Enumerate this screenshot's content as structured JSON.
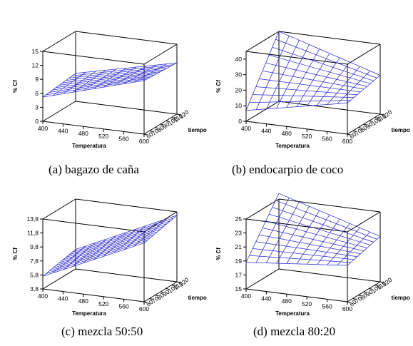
{
  "captions": [
    "(a) bagazo de caña",
    "(b) endocarpio de coco",
    "(c) mezcla 50:50",
    "(d) mezcla 80:20"
  ],
  "chart_data": [
    {
      "type": "surface",
      "caption": "(a) bagazo de caña",
      "xlabel": "Temperatura",
      "ylabel": "tiempo",
      "zlabel": "% Cf",
      "x_ticks": [
        "400",
        "440",
        "480",
        "520",
        "560",
        "600"
      ],
      "y_ticks": [
        "60",
        "70",
        "80",
        "90",
        "100",
        "110",
        "120"
      ],
      "z_ticks": [
        "0",
        "3",
        "6",
        "9",
        "12",
        "15"
      ],
      "xlim": [
        400,
        600
      ],
      "ylim": [
        60,
        120
      ],
      "zlim": [
        0,
        15
      ],
      "grid": false,
      "surface_corners": {
        "x400_y60": 5.2,
        "x600_y60": 11.5,
        "x400_y120": 6.0,
        "x600_y120": 11.0
      },
      "series_color": "#2b2bd6"
    },
    {
      "type": "surface",
      "caption": "(b) endocarpio de coco",
      "xlabel": "Temperatura",
      "ylabel": "tiempo",
      "zlabel": "% Cf",
      "x_ticks": [
        "400",
        "440",
        "480",
        "520",
        "560",
        "600"
      ],
      "y_ticks": [
        "60",
        "70",
        "80",
        "90",
        "100",
        "110",
        "120"
      ],
      "z_ticks": [
        "0",
        "10",
        "20",
        "30",
        "40"
      ],
      "xlim": [
        400,
        600
      ],
      "ylim": [
        60,
        120
      ],
      "zlim": [
        0,
        45
      ],
      "grid": false,
      "surface_corners": {
        "x400_y60": 7,
        "x600_y60": 20,
        "x400_y120": 45,
        "x600_y120": 25
      },
      "series_color": "#2b2bd6"
    },
    {
      "type": "surface",
      "caption": "(c) mezcla 50:50",
      "xlabel": "Temperatura",
      "ylabel": "tiempo",
      "zlabel": "% Cf",
      "x_ticks": [
        "400",
        "440",
        "480",
        "520",
        "560",
        "600"
      ],
      "y_ticks": [
        "60",
        "70",
        "80",
        "90",
        "100",
        "110",
        "120"
      ],
      "z_ticks": [
        "3,8",
        "5,8",
        "7,8",
        "9,8",
        "11,8",
        "13,8"
      ],
      "xlim": [
        400,
        600
      ],
      "ylim": [
        60,
        120
      ],
      "zlim": [
        3.8,
        13.8
      ],
      "grid": false,
      "surface_corners": {
        "x400_y60": 5.6,
        "x600_y60": 12.2,
        "x400_y120": 6.6,
        "x600_y120": 13.3
      },
      "series_color": "#2b2bd6"
    },
    {
      "type": "surface",
      "caption": "(d) mezcla 80:20",
      "xlabel": "Temperatura",
      "ylabel": "tiempo",
      "zlabel": "% Cf",
      "x_ticks": [
        "400",
        "440",
        "480",
        "520",
        "560",
        "600"
      ],
      "y_ticks": [
        "60",
        "70",
        "80",
        "90",
        "100",
        "110",
        "120"
      ],
      "z_ticks": [
        "15",
        "17",
        "19",
        "21",
        "23",
        "25"
      ],
      "xlim": [
        400,
        600
      ],
      "ylim": [
        60,
        120
      ],
      "zlim": [
        15,
        25
      ],
      "grid": false,
      "surface_corners": {
        "x400_y60": 18.8,
        "x600_y60": 20.2,
        "x400_y120": 25.8,
        "x600_y120": 21.5
      },
      "series_color": "#2b2bd6"
    }
  ]
}
